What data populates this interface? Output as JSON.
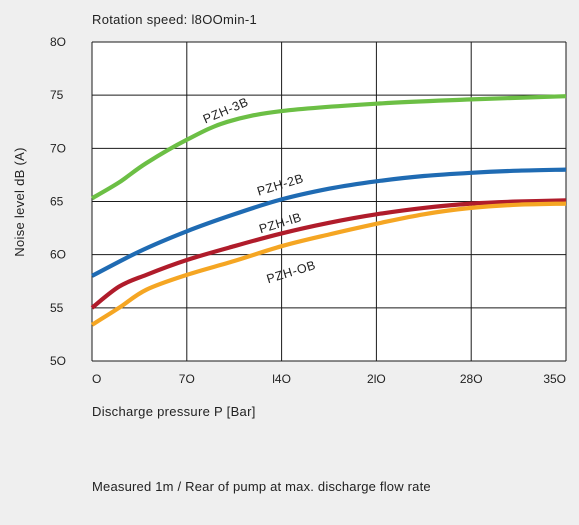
{
  "chart_data": {
    "type": "line",
    "title": "Rotation speed: l8OOmin-1",
    "xlabel": "Discharge pressure P [Bar]",
    "ylabel": "Noise level dB (A)",
    "note": "Measured 1m / Rear of pump at max. discharge flow rate",
    "xlim": [
      0,
      350
    ],
    "ylim": [
      50,
      80
    ],
    "x_ticks": [
      0,
      70,
      140,
      210,
      280,
      350
    ],
    "x_tick_labels": [
      "O",
      "7O",
      "l4O",
      "2lO",
      "28O",
      "35O"
    ],
    "y_ticks": [
      50,
      55,
      60,
      65,
      70,
      75,
      80
    ],
    "y_tick_labels": [
      "5O",
      "55",
      "6O",
      "65",
      "7O",
      "75",
      "8O"
    ],
    "grid": true,
    "series": [
      {
        "name": "PZH-3B",
        "color": "#6cbf45",
        "x": [
          0,
          20,
          40,
          70,
          100,
          140,
          210,
          280,
          350
        ],
        "y": [
          65.3,
          66.8,
          68.6,
          70.8,
          72.5,
          73.5,
          74.2,
          74.6,
          74.9
        ]
      },
      {
        "name": "PZH-2B",
        "color": "#1f6bb3",
        "x": [
          0,
          35,
          70,
          105,
          140,
          175,
          210,
          245,
          280,
          315,
          350
        ],
        "y": [
          58.0,
          60.3,
          62.2,
          63.8,
          65.2,
          66.2,
          66.9,
          67.4,
          67.7,
          67.9,
          68.0
        ]
      },
      {
        "name": "PZH-lB",
        "color": "#b01c2b",
        "x": [
          0,
          20,
          40,
          70,
          105,
          140,
          175,
          210,
          245,
          280,
          315,
          350
        ],
        "y": [
          55.0,
          57.0,
          58.1,
          59.5,
          60.8,
          62.0,
          63.0,
          63.8,
          64.4,
          64.8,
          65.0,
          65.1
        ]
      },
      {
        "name": "PZH-OB",
        "color": "#f5a623",
        "x": [
          0,
          20,
          40,
          70,
          105,
          140,
          175,
          210,
          245,
          280,
          315,
          350
        ],
        "y": [
          53.4,
          55.0,
          56.7,
          58.1,
          59.4,
          60.8,
          61.9,
          62.9,
          63.8,
          64.4,
          64.7,
          64.8
        ]
      }
    ],
    "series_labels": [
      {
        "text": "PZH-3B",
        "x": 100,
        "y": 73.2,
        "angle": -23
      },
      {
        "text": "PZH-2B",
        "x": 140,
        "y": 66.2,
        "angle": -17
      },
      {
        "text": "PZH-lB",
        "x": 140,
        "y": 62.6,
        "angle": -17
      },
      {
        "text": "PZH-OB",
        "x": 148,
        "y": 58.0,
        "angle": -17
      }
    ]
  }
}
